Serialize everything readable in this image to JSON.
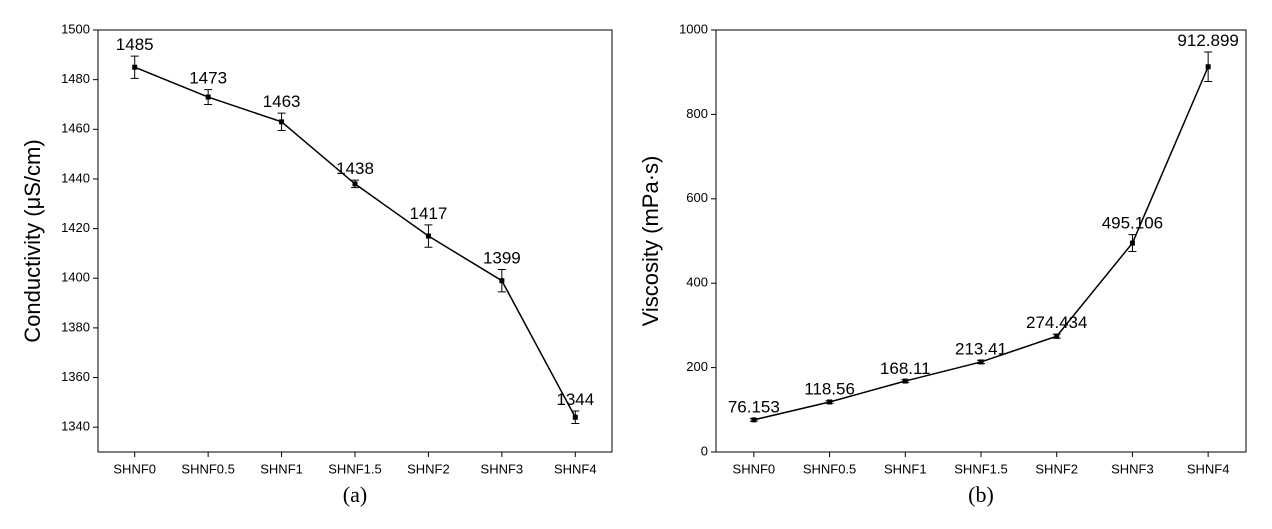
{
  "chart_data": [
    {
      "type": "line",
      "caption": "(a)",
      "y_label": "Conductivity (μS/cm)",
      "categories": [
        "SHNF0",
        "SHNF0.5",
        "SHNF1",
        "SHNF1.5",
        "SHNF2",
        "SHNF3",
        "SHNF4"
      ],
      "series": [
        {
          "color": "#000000",
          "values": [
            1485,
            1473,
            1463,
            1438,
            1417,
            1399,
            1344
          ],
          "errors": [
            4.5,
            3,
            3.5,
            1.5,
            4.5,
            4.5,
            2.5
          ]
        }
      ],
      "ylim": [
        1330,
        1500
      ],
      "yticks": [
        1340,
        1360,
        1380,
        1400,
        1420,
        1440,
        1460,
        1480,
        1500
      ]
    },
    {
      "type": "line",
      "caption": "(b)",
      "y_label": "Viscosity (mPa·s)",
      "categories": [
        "SHNF0",
        "SHNF0.5",
        "SHNF1",
        "SHNF1.5",
        "SHNF2",
        "SHNF3",
        "SHNF4"
      ],
      "series": [
        {
          "color": "#000000",
          "values": [
            76.153,
            118.56,
            168.11,
            213.41,
            274.434,
            495.106,
            912.899
          ],
          "errors": [
            3,
            3,
            3,
            4,
            5,
            20,
            35
          ]
        }
      ],
      "ylim": [
        0,
        1000
      ],
      "yticks": [
        0,
        200,
        400,
        600,
        800,
        1000
      ]
    }
  ]
}
